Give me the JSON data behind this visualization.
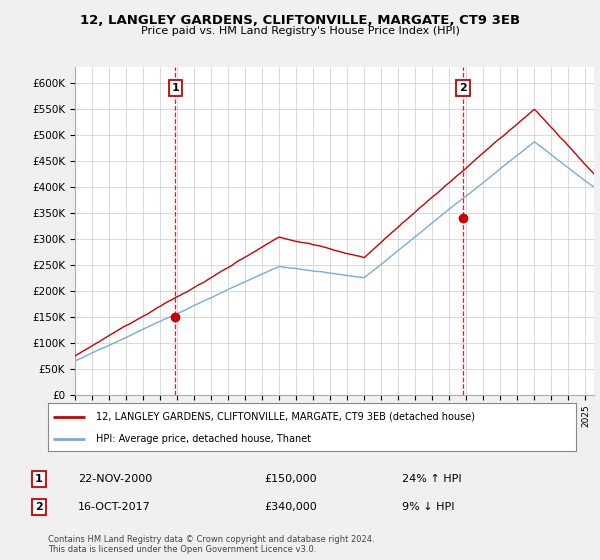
{
  "title": "12, LANGLEY GARDENS, CLIFTONVILLE, MARGATE, CT9 3EB",
  "subtitle": "Price paid vs. HM Land Registry's House Price Index (HPI)",
  "ylim": [
    0,
    630000
  ],
  "yticks": [
    0,
    50000,
    100000,
    150000,
    200000,
    250000,
    300000,
    350000,
    400000,
    450000,
    500000,
    550000,
    600000
  ],
  "ytick_labels": [
    "£0",
    "£50K",
    "£100K",
    "£150K",
    "£200K",
    "£250K",
    "£300K",
    "£350K",
    "£400K",
    "£450K",
    "£500K",
    "£550K",
    "£600K"
  ],
  "sale1": {
    "date_num": 2000.9,
    "price": 150000,
    "label": "1",
    "date_str": "22-NOV-2000",
    "pct": "24% ↑ HPI"
  },
  "sale2": {
    "date_num": 2017.8,
    "price": 340000,
    "label": "2",
    "date_str": "16-OCT-2017",
    "pct": "9% ↓ HPI"
  },
  "legend_line1": "12, LANGLEY GARDENS, CLIFTONVILLE, MARGATE, CT9 3EB (detached house)",
  "legend_line2": "HPI: Average price, detached house, Thanet",
  "footer": "Contains HM Land Registry data © Crown copyright and database right 2024.\nThis data is licensed under the Open Government Licence v3.0.",
  "color_red": "#cc0000",
  "color_blue": "#7aaadd",
  "background": "#f0f0f0",
  "plot_bg": "#ffffff"
}
